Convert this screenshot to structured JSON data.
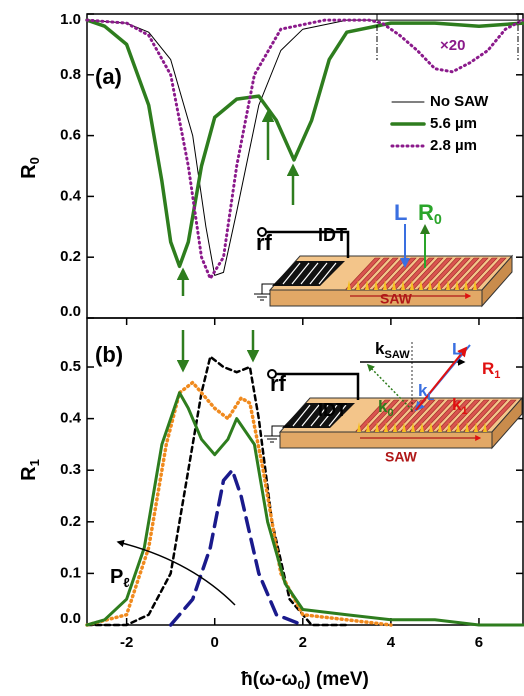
{
  "chart_data": [
    {
      "type": "line",
      "ylabel": {
        "text": "R",
        "sub": "0"
      },
      "xlim": [
        -2.9,
        7
      ],
      "ylim": [
        0,
        1
      ],
      "yticks": [
        {
          "value": 0,
          "label": "0.0"
        },
        {
          "value": 0.2,
          "label": "0.2"
        },
        {
          "value": 0.4,
          "label": "0.4"
        },
        {
          "value": 0.6,
          "label": "0.6"
        },
        {
          "value": 0.8,
          "label": "0.8"
        },
        {
          "value": 1,
          "label": "1.0"
        }
      ],
      "series": [
        {
          "name": "No SAW",
          "color": "#000000",
          "style": "solid",
          "width": 1,
          "x": [
            -2.9,
            -2,
            -1.5,
            -1,
            -0.5,
            -0.2,
            0,
            0.2,
            0.5,
            1,
            1.5,
            2,
            3,
            4,
            5,
            6,
            7
          ],
          "values": [
            0.98,
            0.97,
            0.94,
            0.85,
            0.6,
            0.3,
            0.14,
            0.15,
            0.35,
            0.7,
            0.88,
            0.95,
            0.98,
            0.98,
            0.98,
            0.98,
            0.98
          ]
        },
        {
          "name": "5.6 µm",
          "color": "#2e7d1e",
          "style": "solid",
          "width": 3.5,
          "x": [
            -2.9,
            -2.5,
            -2,
            -1.5,
            -1.2,
            -1,
            -0.8,
            -0.6,
            -0.3,
            0,
            0.5,
            1,
            1.4,
            1.8,
            2.2,
            2.6,
            3,
            4,
            5,
            6,
            7
          ],
          "values": [
            0.98,
            0.96,
            0.9,
            0.7,
            0.45,
            0.25,
            0.17,
            0.25,
            0.5,
            0.66,
            0.72,
            0.73,
            0.65,
            0.52,
            0.65,
            0.85,
            0.94,
            0.97,
            0.97,
            0.96,
            0.97
          ]
        },
        {
          "name": "2.8 µm",
          "color": "#8b1a8b",
          "style": "dotted",
          "width": 3,
          "x": [
            -2.9,
            -2,
            -1.5,
            -1,
            -0.6,
            -0.3,
            -0.1,
            0.2,
            0.5,
            0.9,
            1.5,
            2.5,
            3.5,
            3.8,
            4.2,
            4.6,
            5,
            5.4,
            5.8,
            6.2,
            6.6,
            7
          ],
          "values": [
            0.98,
            0.97,
            0.93,
            0.8,
            0.5,
            0.2,
            0.13,
            0.2,
            0.5,
            0.8,
            0.95,
            0.98,
            0.98,
            0.97,
            0.93,
            0.88,
            0.82,
            0.81,
            0.84,
            0.88,
            0.95,
            0.98
          ]
        }
      ],
      "annotations": [
        "(a)",
        "×20",
        "rf",
        "IDT",
        "L",
        {
          "text": "R",
          "sub": "0"
        },
        "SAW"
      ]
    },
    {
      "type": "line",
      "ylabel": {
        "text": "R",
        "sub": "1"
      },
      "xlabel": {
        "text": "ħ(ω-ω",
        "sub": "0",
        "tail": ") (meV)"
      },
      "xlim": [
        -2.9,
        7
      ],
      "ylim": [
        0,
        0.595
      ],
      "xticks": [
        -2,
        0,
        2,
        4,
        6
      ],
      "yticks": [
        {
          "value": 0,
          "label": "0.0"
        },
        0.1,
        0.2,
        0.3,
        0.4,
        0.5
      ],
      "series": [
        {
          "color": "#000000",
          "style": "dashed",
          "width": 2.5,
          "x": [
            -2.9,
            -2,
            -1.5,
            -1,
            -0.6,
            -0.3,
            -0.1,
            0.2,
            0.5,
            0.8,
            1,
            1.3,
            1.7,
            2.2,
            3
          ],
          "values": [
            0,
            0,
            0.02,
            0.1,
            0.3,
            0.45,
            0.52,
            0.5,
            0.49,
            0.5,
            0.4,
            0.2,
            0.05,
            0,
            0
          ]
        },
        {
          "color": "#f08a1e",
          "style": "dotted",
          "width": 3.5,
          "x": [
            -2.9,
            -2,
            -1.5,
            -1.1,
            -0.8,
            -0.5,
            0,
            0.3,
            0.6,
            0.8,
            1.1,
            1.5,
            2,
            3,
            4
          ],
          "values": [
            0,
            0.02,
            0.15,
            0.35,
            0.45,
            0.47,
            0.42,
            0.4,
            0.44,
            0.43,
            0.3,
            0.1,
            0.02,
            0.01,
            0
          ]
        },
        {
          "color": "#2e7d1e",
          "style": "solid",
          "width": 3,
          "x": [
            -2.9,
            -2.5,
            -2,
            -1.6,
            -1.2,
            -0.8,
            -0.6,
            -0.3,
            0,
            0.3,
            0.5,
            0.9,
            1.2,
            1.6,
            2,
            3,
            4,
            5,
            6,
            7
          ],
          "values": [
            0,
            0.01,
            0.05,
            0.15,
            0.35,
            0.45,
            0.42,
            0.36,
            0.33,
            0.36,
            0.4,
            0.35,
            0.2,
            0.08,
            0.03,
            0.02,
            0.01,
            0.01,
            0,
            0
          ]
        },
        {
          "color": "#1a1a8c",
          "style": "longdash",
          "width": 3.5,
          "x": [
            -1,
            -0.5,
            -0.1,
            0.2,
            0.4,
            0.6,
            1,
            1.4,
            2
          ],
          "values": [
            0,
            0.05,
            0.15,
            0.28,
            0.3,
            0.25,
            0.1,
            0.02,
            0
          ]
        }
      ],
      "annotations": [
        "(b)",
        "rf",
        "IDT",
        {
          "text": "k",
          "sub": "SAW"
        },
        "L",
        {
          "text": "R",
          "sub": "1"
        },
        {
          "text": "k",
          "sub": "L"
        },
        {
          "text": "k",
          "sub": "0"
        },
        {
          "text": "k",
          "sub": "1"
        },
        "SAW",
        {
          "text": "P",
          "sub": "ℓ"
        }
      ]
    }
  ]
}
